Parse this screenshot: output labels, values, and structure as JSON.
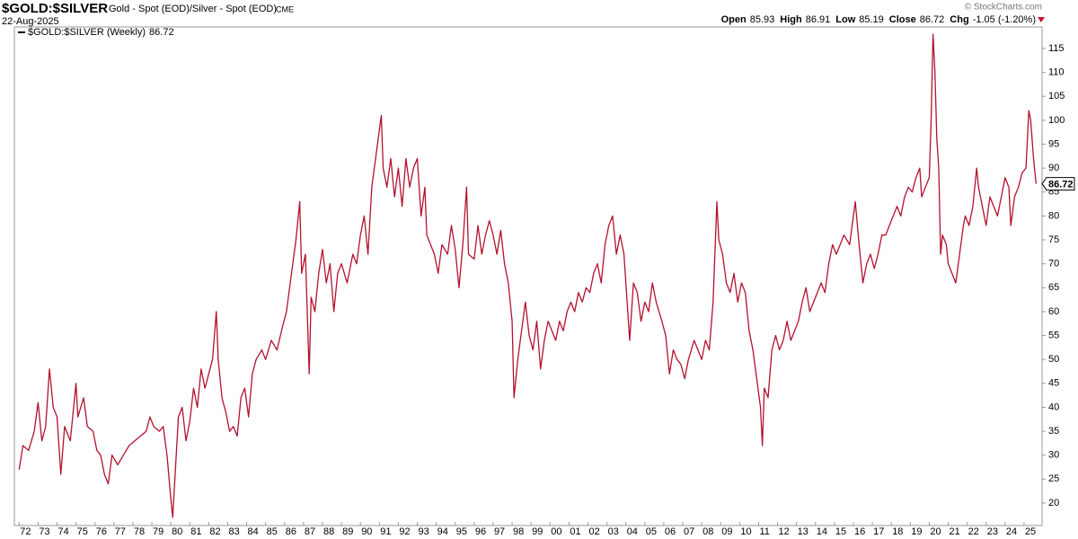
{
  "header": {
    "symbol": "$GOLD:$SILVER",
    "description": "Gold - Spot (EOD)/Silver - Spot (EOD)",
    "exchange": "CME",
    "date": "22-Aug-2025",
    "copyright": "© StockCharts.com",
    "stats": [
      {
        "label": "Open",
        "value": 85.93
      },
      {
        "label": "High",
        "value": 86.91
      },
      {
        "label": "Low",
        "value": 85.19
      },
      {
        "label": "Close",
        "value": 86.72
      },
      {
        "label": "Chg",
        "value": "-1.05 (-1.20%)"
      }
    ]
  },
  "chart_data": {
    "type": "line",
    "x": [
      1972.0,
      1972.2,
      1972.5,
      1972.8,
      1973.0,
      1973.2,
      1973.4,
      1973.6,
      1973.8,
      1974.0,
      1974.2,
      1974.4,
      1974.7,
      1974.9,
      1975.0,
      1975.1,
      1975.4,
      1975.6,
      1975.9,
      1976.1,
      1976.3,
      1976.5,
      1976.7,
      1976.9,
      1977.2,
      1977.5,
      1977.8,
      1978.1,
      1978.4,
      1978.7,
      1978.9,
      1979.1,
      1979.4,
      1979.6,
      1979.8,
      1980.0,
      1980.1,
      1980.2,
      1980.4,
      1980.6,
      1980.8,
      1981.0,
      1981.2,
      1981.4,
      1981.6,
      1981.8,
      1982.0,
      1982.2,
      1982.4,
      1982.5,
      1982.7,
      1982.9,
      1983.1,
      1983.3,
      1983.5,
      1983.7,
      1983.9,
      1984.1,
      1984.3,
      1984.5,
      1984.8,
      1985.0,
      1985.3,
      1985.6,
      1985.9,
      1986.1,
      1986.3,
      1986.6,
      1986.8,
      1986.9,
      1987.1,
      1987.3,
      1987.4,
      1987.6,
      1987.8,
      1988.0,
      1988.2,
      1988.4,
      1988.6,
      1988.8,
      1989.0,
      1989.3,
      1989.6,
      1989.8,
      1990.0,
      1990.2,
      1990.4,
      1990.6,
      1990.8,
      1991.0,
      1991.1,
      1991.2,
      1991.4,
      1991.6,
      1991.8,
      1992.0,
      1992.2,
      1992.4,
      1992.6,
      1992.8,
      1993.0,
      1993.2,
      1993.4,
      1993.5,
      1993.7,
      1993.9,
      1994.1,
      1994.3,
      1994.6,
      1994.8,
      1995.0,
      1995.2,
      1995.4,
      1995.6,
      1995.7,
      1996.0,
      1996.2,
      1996.4,
      1996.6,
      1996.8,
      1997.0,
      1997.2,
      1997.4,
      1997.6,
      1997.8,
      1998.0,
      1998.1,
      1998.3,
      1998.5,
      1998.7,
      1998.9,
      1999.1,
      1999.3,
      1999.5,
      1999.7,
      1999.9,
      2000.1,
      2000.3,
      2000.5,
      2000.7,
      2000.9,
      2001.1,
      2001.3,
      2001.5,
      2001.7,
      2001.9,
      2002.1,
      2002.3,
      2002.5,
      2002.7,
      2002.9,
      2003.1,
      2003.3,
      2003.5,
      2003.7,
      2003.9,
      2004.1,
      2004.2,
      2004.4,
      2004.6,
      2004.8,
      2005.0,
      2005.2,
      2005.4,
      2005.6,
      2005.9,
      2006.1,
      2006.3,
      2006.5,
      2006.7,
      2006.9,
      2007.1,
      2007.3,
      2007.6,
      2007.8,
      2008.0,
      2008.2,
      2008.4,
      2008.6,
      2008.8,
      2008.9,
      2009.1,
      2009.3,
      2009.5,
      2009.7,
      2009.9,
      2010.1,
      2010.3,
      2010.5,
      2010.7,
      2010.9,
      2011.1,
      2011.2,
      2011.3,
      2011.5,
      2011.7,
      2011.9,
      2012.1,
      2012.3,
      2012.5,
      2012.7,
      2012.9,
      2013.1,
      2013.3,
      2013.5,
      2013.7,
      2013.9,
      2014.1,
      2014.3,
      2014.5,
      2014.7,
      2014.9,
      2015.1,
      2015.3,
      2015.5,
      2015.8,
      2016.0,
      2016.1,
      2016.3,
      2016.5,
      2016.7,
      2016.9,
      2017.1,
      2017.3,
      2017.5,
      2017.7,
      2017.9,
      2018.1,
      2018.3,
      2018.5,
      2018.7,
      2018.9,
      2019.1,
      2019.3,
      2019.5,
      2019.6,
      2019.8,
      2020.0,
      2020.1,
      2020.2,
      2020.3,
      2020.4,
      2020.5,
      2020.6,
      2020.7,
      2020.9,
      2021.0,
      2021.2,
      2021.4,
      2021.6,
      2021.8,
      2021.9,
      2022.1,
      2022.3,
      2022.5,
      2022.6,
      2022.8,
      2023.0,
      2023.2,
      2023.4,
      2023.6,
      2023.8,
      2024.0,
      2024.2,
      2024.3,
      2024.5,
      2024.7,
      2024.9,
      2025.1,
      2025.25,
      2025.35,
      2025.5,
      2025.6,
      2025.64
    ],
    "series": [
      {
        "name": "$GOLD:$SILVER (Weekly)",
        "color": "#b3112e",
        "values": [
          27,
          32,
          31,
          35,
          41,
          33,
          36,
          48,
          40,
          38,
          26,
          36,
          33,
          41,
          45,
          38,
          42,
          36,
          35,
          31,
          30,
          26,
          24,
          30,
          28,
          30,
          32,
          33,
          34,
          35,
          38,
          36,
          35,
          36,
          30,
          21,
          17,
          24,
          38,
          40,
          33,
          37,
          44,
          40,
          48,
          44,
          47,
          50,
          60,
          50,
          42,
          39,
          35,
          36,
          34,
          42,
          44,
          38,
          47,
          50,
          52,
          50,
          54,
          52,
          57,
          60,
          66,
          75,
          83,
          68,
          72,
          47,
          63,
          60,
          68,
          73,
          66,
          70,
          60,
          68,
          70,
          66,
          72,
          70,
          76,
          80,
          72,
          86,
          92,
          98,
          101,
          90,
          86,
          92,
          84,
          90,
          82,
          92,
          86,
          90,
          92,
          80,
          86,
          76,
          74,
          72,
          68,
          74,
          72,
          78,
          73,
          65,
          74,
          86,
          72,
          71,
          78,
          72,
          76,
          79,
          76,
          72,
          77,
          70,
          66,
          58,
          42,
          50,
          56,
          62,
          55,
          52,
          58,
          48,
          54,
          58,
          56,
          54,
          58,
          56,
          60,
          62,
          60,
          64,
          62,
          65,
          64,
          68,
          70,
          66,
          74,
          78,
          80,
          72,
          76,
          72,
          60,
          54,
          66,
          64,
          58,
          62,
          60,
          66,
          62,
          58,
          55,
          47,
          52,
          50,
          49,
          46,
          50,
          54,
          52,
          50,
          54,
          52,
          62,
          83,
          75,
          72,
          66,
          64,
          68,
          62,
          66,
          64,
          56,
          52,
          46,
          40,
          32,
          44,
          42,
          52,
          55,
          52,
          54,
          58,
          54,
          56,
          58,
          62,
          65,
          60,
          62,
          64,
          66,
          64,
          70,
          74,
          72,
          74,
          76,
          74,
          80,
          83,
          74,
          66,
          70,
          72,
          69,
          72,
          76,
          76,
          78,
          80,
          82,
          80,
          84,
          86,
          85,
          88,
          90,
          84,
          86,
          88,
          100,
          118,
          110,
          96,
          90,
          72,
          76,
          74,
          70,
          68,
          66,
          72,
          78,
          80,
          78,
          82,
          90,
          86,
          82,
          78,
          84,
          82,
          80,
          84,
          88,
          86,
          78,
          84,
          86,
          89,
          90,
          102,
          100,
          92,
          88,
          86.72
        ]
      }
    ],
    "xlim": [
      1971.75,
      2025.95
    ],
    "ylim": [
      15.3,
      119.5
    ],
    "yticks": [
      20,
      25,
      30,
      35,
      40,
      45,
      50,
      55,
      60,
      65,
      70,
      75,
      80,
      85,
      90,
      95,
      100,
      105,
      110,
      115
    ],
    "xticks": [
      {
        "value": 1972,
        "label": "72"
      },
      {
        "value": 1973,
        "label": "73"
      },
      {
        "value": 1974,
        "label": "74"
      },
      {
        "value": 1975,
        "label": "75"
      },
      {
        "value": 1976,
        "label": "76"
      },
      {
        "value": 1977,
        "label": "77"
      },
      {
        "value": 1978,
        "label": "78"
      },
      {
        "value": 1979,
        "label": "79"
      },
      {
        "value": 1980,
        "label": "80"
      },
      {
        "value": 1981,
        "label": "81"
      },
      {
        "value": 1982,
        "label": "82"
      },
      {
        "value": 1983,
        "label": "83"
      },
      {
        "value": 1984,
        "label": "84"
      },
      {
        "value": 1985,
        "label": "85"
      },
      {
        "value": 1986,
        "label": "86"
      },
      {
        "value": 1987,
        "label": "87"
      },
      {
        "value": 1988,
        "label": "88"
      },
      {
        "value": 1989,
        "label": "89"
      },
      {
        "value": 1990,
        "label": "90"
      },
      {
        "value": 1991,
        "label": "91"
      },
      {
        "value": 1992,
        "label": "92"
      },
      {
        "value": 1993,
        "label": "93"
      },
      {
        "value": 1994,
        "label": "94"
      },
      {
        "value": 1995,
        "label": "95"
      },
      {
        "value": 1996,
        "label": "96"
      },
      {
        "value": 1997,
        "label": "97"
      },
      {
        "value": 1998,
        "label": "98"
      },
      {
        "value": 1999,
        "label": "99"
      },
      {
        "value": 2000,
        "label": "00"
      },
      {
        "value": 2001,
        "label": "01"
      },
      {
        "value": 2002,
        "label": "02"
      },
      {
        "value": 2003,
        "label": "03"
      },
      {
        "value": 2004,
        "label": "04"
      },
      {
        "value": 2005,
        "label": "05"
      },
      {
        "value": 2006,
        "label": "06"
      },
      {
        "value": 2007,
        "label": "07"
      },
      {
        "value": 2008,
        "label": "08"
      },
      {
        "value": 2009,
        "label": "09"
      },
      {
        "value": 2010,
        "label": "10"
      },
      {
        "value": 2011,
        "label": "11"
      },
      {
        "value": 2012,
        "label": "12"
      },
      {
        "value": 2013,
        "label": "13"
      },
      {
        "value": 2014,
        "label": "14"
      },
      {
        "value": 2015,
        "label": "15"
      },
      {
        "value": 2016,
        "label": "16"
      },
      {
        "value": 2017,
        "label": "17"
      },
      {
        "value": 2018,
        "label": "18"
      },
      {
        "value": 2019,
        "label": "19"
      },
      {
        "value": 2020,
        "label": "20"
      },
      {
        "value": 2021,
        "label": "21"
      },
      {
        "value": 2022,
        "label": "22"
      },
      {
        "value": 2023,
        "label": "23"
      },
      {
        "value": 2024,
        "label": "24"
      },
      {
        "value": 2025,
        "label": "25"
      }
    ],
    "grid": false
  }
}
